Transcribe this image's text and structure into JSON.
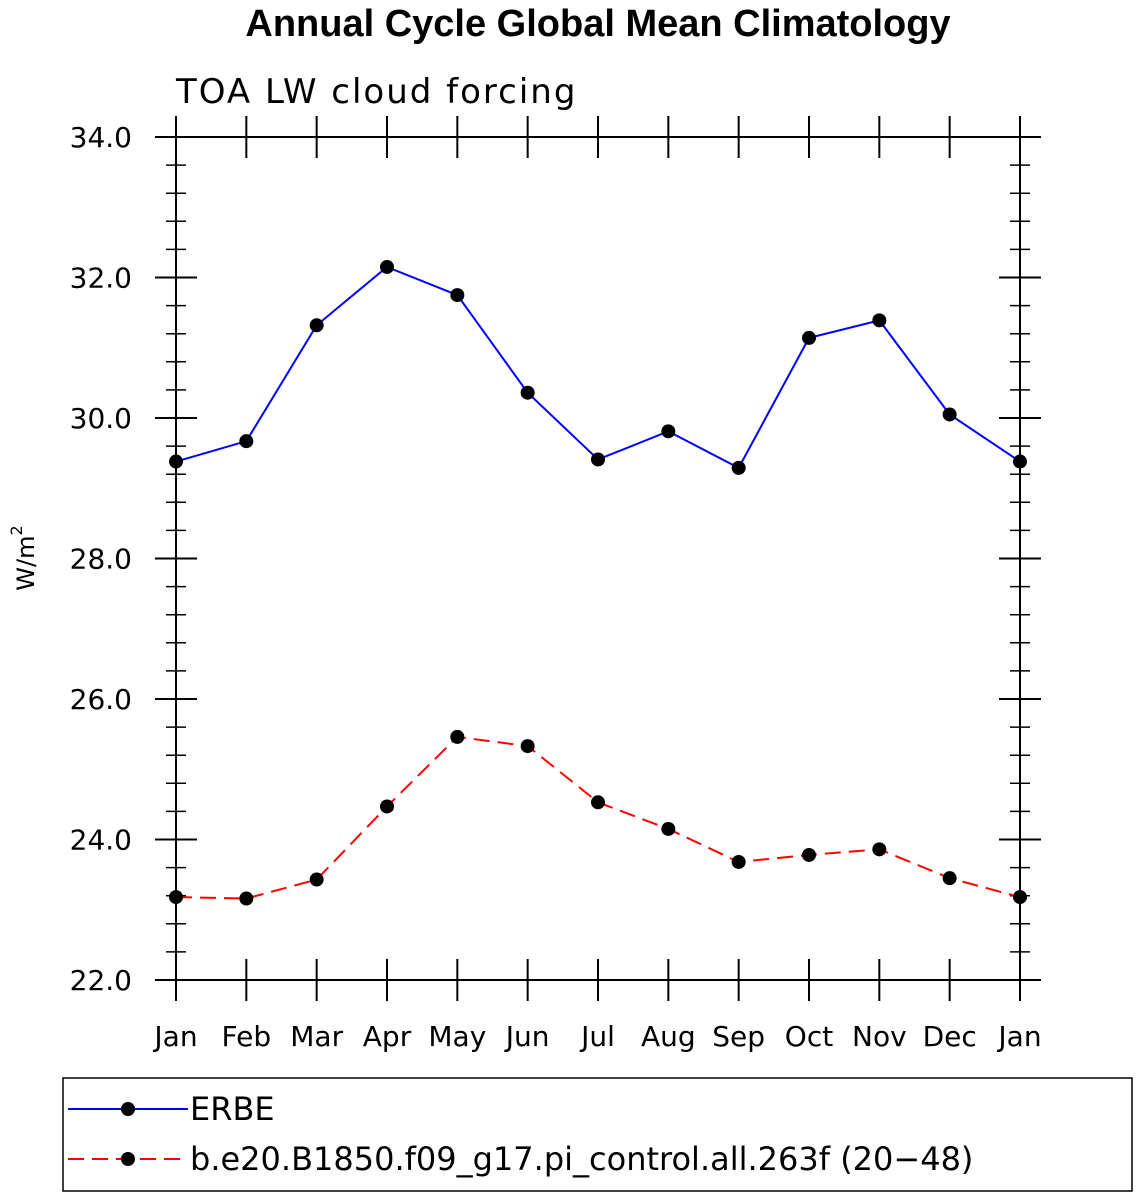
{
  "chart_data": {
    "type": "line",
    "title": "Annual Cycle Global Mean Climatology",
    "subtitle": "TOA LW cloud forcing",
    "xlabel": "",
    "ylabel": "W/m",
    "ylabel_superscript": "2",
    "categories": [
      "Jan",
      "Feb",
      "Mar",
      "Apr",
      "May",
      "Jun",
      "Jul",
      "Aug",
      "Sep",
      "Oct",
      "Nov",
      "Dec",
      "Jan"
    ],
    "ylim": [
      22.0,
      34.0
    ],
    "yticks": [
      "22.0",
      "24.0",
      "26.0",
      "28.0",
      "30.0",
      "32.0",
      "34.0"
    ],
    "series": [
      {
        "name": "ERBE",
        "color": "#0000ff",
        "dash": "solid",
        "values": [
          29.38,
          29.67,
          31.32,
          32.15,
          31.75,
          30.36,
          29.41,
          29.81,
          29.29,
          31.14,
          31.39,
          30.05,
          29.38
        ]
      },
      {
        "name": "b.e20.B1850.f09_g17.pi_control.all.263f (20−48)",
        "color": "#ff0000",
        "dash": "dashed",
        "values": [
          23.18,
          23.16,
          23.43,
          24.47,
          25.46,
          25.33,
          24.53,
          24.15,
          23.68,
          23.78,
          23.86,
          23.45,
          23.18
        ]
      }
    ]
  }
}
